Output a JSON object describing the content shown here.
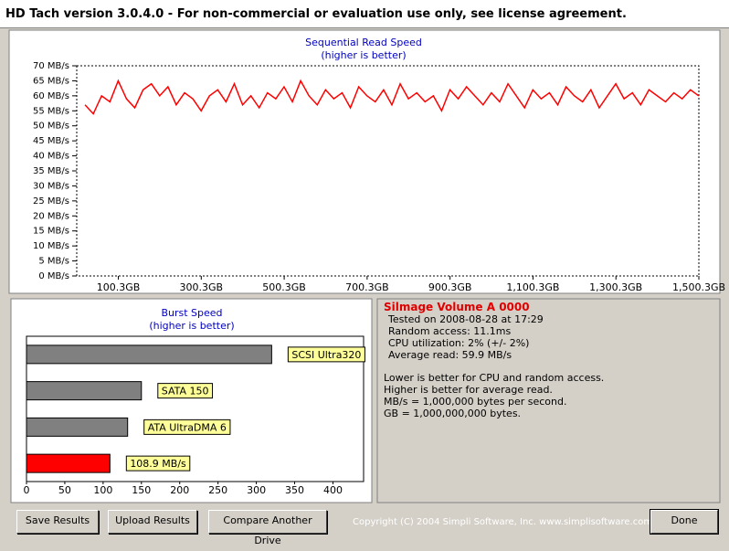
{
  "window": {
    "title": "HD Tach version 3.0.4.0  - For non-commercial or evaluation use only, see license agreement."
  },
  "chart_data": [
    {
      "type": "line",
      "title": "Sequential Read Speed",
      "subtitle": "(higher is better)",
      "color": "#ff0000",
      "x": [
        20,
        40,
        60,
        80,
        100,
        120,
        140,
        160,
        180,
        200,
        220,
        240,
        260,
        280,
        300,
        320,
        340,
        360,
        380,
        400,
        420,
        440,
        460,
        480,
        500,
        520,
        540,
        560,
        580,
        600,
        620,
        640,
        660,
        680,
        700,
        720,
        740,
        760,
        780,
        800,
        820,
        840,
        860,
        880,
        900,
        920,
        940,
        960,
        980,
        1000,
        1020,
        1040,
        1060,
        1080,
        1100,
        1120,
        1140,
        1160,
        1180,
        1200,
        1220,
        1240,
        1260,
        1280,
        1300,
        1320,
        1340,
        1360,
        1380,
        1400,
        1420,
        1440,
        1460,
        1480,
        1500
      ],
      "values": [
        57,
        54,
        60,
        58,
        65,
        59,
        56,
        62,
        64,
        60,
        63,
        57,
        61,
        59,
        55,
        60,
        62,
        58,
        64,
        57,
        60,
        56,
        61,
        59,
        63,
        58,
        65,
        60,
        57,
        62,
        59,
        61,
        56,
        63,
        60,
        58,
        62,
        57,
        64,
        59,
        61,
        58,
        60,
        55,
        62,
        59,
        63,
        60,
        57,
        61,
        58,
        64,
        60,
        56,
        62,
        59,
        61,
        57,
        63,
        60,
        58,
        62,
        56,
        60,
        64,
        59,
        61,
        57,
        62,
        60,
        58,
        61,
        59,
        62,
        60
      ],
      "xlim": [
        0,
        1500.3
      ],
      "xticks": [
        {
          "value": 100.3,
          "label": "100.3GB"
        },
        {
          "value": 300.3,
          "label": "300.3GB"
        },
        {
          "value": 500.3,
          "label": "500.3GB"
        },
        {
          "value": 700.3,
          "label": "700.3GB"
        },
        {
          "value": 900.3,
          "label": "900.3GB"
        },
        {
          "value": 1100.3,
          "label": "1,100.3GB"
        },
        {
          "value": 1300.3,
          "label": "1,300.3GB"
        },
        {
          "value": 1500.3,
          "label": "1,500.3GB"
        }
      ],
      "ylim": [
        0,
        70
      ],
      "yticks": [
        {
          "value": 0,
          "label": "0 MB/s"
        },
        {
          "value": 5,
          "label": "5 MB/s"
        },
        {
          "value": 10,
          "label": "10 MB/s"
        },
        {
          "value": 15,
          "label": "15 MB/s"
        },
        {
          "value": 20,
          "label": "20 MB/s"
        },
        {
          "value": 25,
          "label": "25 MB/s"
        },
        {
          "value": 30,
          "label": "30 MB/s"
        },
        {
          "value": 35,
          "label": "35 MB/s"
        },
        {
          "value": 40,
          "label": "40 MB/s"
        },
        {
          "value": 45,
          "label": "45 MB/s"
        },
        {
          "value": 50,
          "label": "50 MB/s"
        },
        {
          "value": 55,
          "label": "55 MB/s"
        },
        {
          "value": 60,
          "label": "60 MB/s"
        },
        {
          "value": 65,
          "label": "65 MB/s"
        },
        {
          "value": 70,
          "label": "70 MB/s"
        }
      ]
    },
    {
      "type": "hbar",
      "title": "Burst Speed",
      "subtitle": "(higher is better)",
      "categories": [
        "SCSI Ultra320",
        "SATA 150",
        "ATA UltraDMA 6",
        null
      ],
      "values": [
        320,
        150,
        132,
        108.9
      ],
      "value_labels": [
        null,
        null,
        null,
        "108.9 MB/s"
      ],
      "colors": [
        "#808080",
        "#808080",
        "#808080",
        "#ff0000"
      ],
      "xlim": [
        0,
        440
      ],
      "xticks": [
        0,
        50,
        100,
        150,
        200,
        250,
        300,
        350,
        400
      ]
    }
  ],
  "info": {
    "title": "Silmage Volume A 0000",
    "details": [
      "Tested on 2008-08-28 at 17:29",
      "Random access: 11.1ms",
      "CPU utilization: 2% (+/- 2%)",
      "Average read: 59.9 MB/s"
    ],
    "notes": [
      "Lower is better for CPU and random access.",
      "Higher is better for average read.",
      "MB/s = 1,000,000 bytes per second.",
      "GB = 1,000,000,000 bytes."
    ]
  },
  "buttons": [
    "Save Results",
    "Upload Results",
    "Compare Another Drive",
    "Done"
  ],
  "copyright": "Copyright (C) 2004 Simpli Software, Inc. www.simplisoftware.com"
}
